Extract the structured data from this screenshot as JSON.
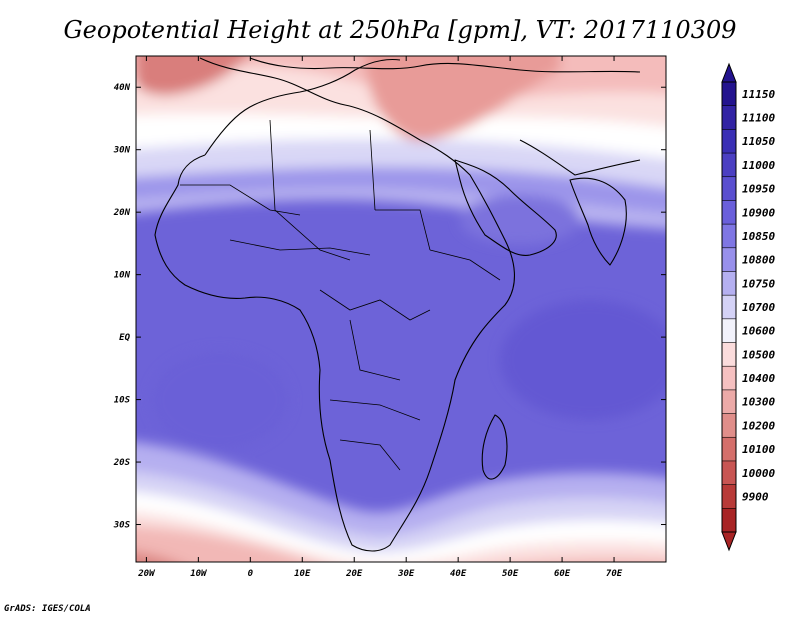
{
  "title": "Geopotential Height at 250hPa [gpm], VT: 2017110309",
  "credit": "GrADS: IGES/COLA",
  "axes": {
    "lon_ticks": [
      "20W",
      "10W",
      "0",
      "10E",
      "20E",
      "30E",
      "40E",
      "50E",
      "60E",
      "70E"
    ],
    "lat_ticks": [
      "40N",
      "30N",
      "20N",
      "10N",
      "EQ",
      "10S",
      "20S",
      "30S"
    ]
  },
  "colorbar": {
    "labels": [
      "11150",
      "11100",
      "11050",
      "11000",
      "10950",
      "10900",
      "10850",
      "10800",
      "10750",
      "10700",
      "10600",
      "10500",
      "10400",
      "10300",
      "10200",
      "10100",
      "10000",
      "9900"
    ],
    "colors": [
      "#23138e",
      "#3223a4",
      "#3a2fb5",
      "#4b3fc2",
      "#5a4fd0",
      "#6a5fdb",
      "#7f76e4",
      "#9890eb",
      "#b5b0f1",
      "#d4d2f6",
      "#f2f2fb",
      "#fbdcdc",
      "#f6c1c1",
      "#ecaaa8",
      "#e08e8a",
      "#d46f6b",
      "#c85553",
      "#b83a38",
      "#a82425"
    ]
  },
  "map_shading": {
    "polar_red_north": "#d98480",
    "pink": "#f3c4c2",
    "light_pink": "#fbe3e2",
    "white_band": "#ffffff",
    "light_blue": "#d2d0f4",
    "mid_blue": "#9f98ea",
    "deep_blue": "#7c72de",
    "core_blue": "#6a60d6"
  }
}
